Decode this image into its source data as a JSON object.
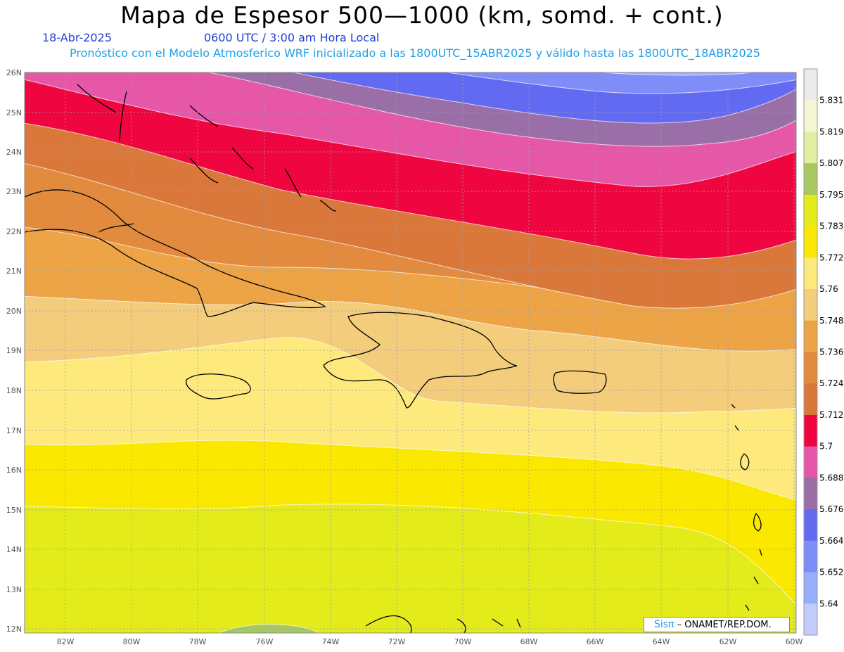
{
  "title": "Mapa de Espesor 500—1000 (km, somd. + cont.)",
  "date": "18-Abr-2025",
  "time": "0600 UTC / 3:00 am Hora Local",
  "model_line": "Pronóstico con el Modelo Atmosferico WRF inicializado a las 1800UTC_15ABR2025 y válido hasta las  1800UTC_18ABR2025",
  "credit": {
    "brand": "Sisπ",
    "text": "– ONAMET/REP.DOM."
  },
  "lat_labels": [
    "26N",
    "25N",
    "24N",
    "23N",
    "22N",
    "21N",
    "20N",
    "19N",
    "18N",
    "17N",
    "16N",
    "15N",
    "14N",
    "13N",
    "12N"
  ],
  "lon_labels": [
    "82W",
    "80W",
    "78W",
    "76W",
    "74W",
    "72W",
    "70W",
    "68W",
    "66W",
    "64W",
    "62W",
    "60W"
  ],
  "colorbar": {
    "labels": [
      "5.831",
      "5.819",
      "5.807",
      "5.795",
      "5.783",
      "5.772",
      "5.76",
      "5.748",
      "5.736",
      "5.724",
      "5.712",
      "5.7",
      "5.688",
      "5.676",
      "5.664",
      "5.652",
      "5.64"
    ],
    "colors": [
      "#ebebeb",
      "#f5f7d2",
      "#e0f0a0",
      "#a7c760",
      "#e4eb1a",
      "#fbe800",
      "#fde97c",
      "#f3cc7c",
      "#eca447",
      "#e28a3d",
      "#d9783a",
      "#ef0540",
      "#e657a8",
      "#9a6ea6",
      "#636af2",
      "#7f8df8",
      "#97aefc",
      "#c2ccfc"
    ]
  }
}
